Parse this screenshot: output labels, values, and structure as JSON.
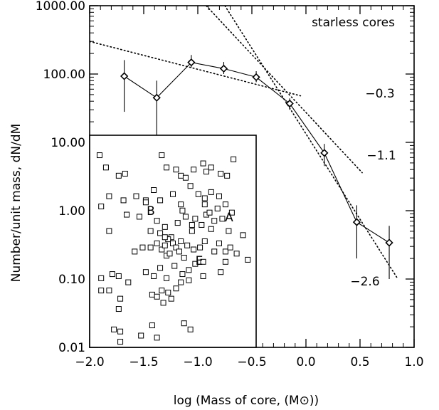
{
  "chart_data": [
    {
      "type": "line",
      "title": "",
      "annotation": "starless cores",
      "xlabel": "log (Mass of core, (M⊙))",
      "ylabel": "Number/unit mass, dN/dM",
      "xlim": [
        -2.0,
        1.0
      ],
      "ylim": [
        0.01,
        1000
      ],
      "yscale": "log",
      "xticks": [
        "−2.0",
        "−1.5",
        "−1.0",
        "−0.5",
        "0.0",
        "0.5",
        "1.0"
      ],
      "yticks": [
        "1000.00",
        "100.00",
        "10.00",
        "1.00",
        "0.10",
        "0.01"
      ],
      "series": [
        {
          "marker": "diamond",
          "x": [
            -1.68,
            -1.38,
            -1.06,
            -0.76,
            -0.46,
            -0.15,
            0.17,
            0.47,
            0.77
          ],
          "y": [
            93,
            45,
            148,
            120,
            90,
            37,
            7,
            0.68,
            0.34
          ],
          "err_low": [
            28,
            10,
            125,
            100,
            76,
            30,
            4.5,
            0.2,
            0.1
          ],
          "err_high": [
            160,
            80,
            190,
            150,
            110,
            44,
            9.5,
            1.2,
            0.6
          ]
        }
      ],
      "fits": [
        {
          "slope_label": "−0.3",
          "x": [
            -2.0,
            -0.05
          ],
          "y": [
            300,
            48
          ]
        },
        {
          "slope_label": "−1.1",
          "x": [
            -1.1,
            0.52
          ],
          "y": [
            2000,
            3.6
          ]
        },
        {
          "slope_label": "−2.6",
          "x": [
            -0.75,
            0.85
          ],
          "y": [
            1000,
            0.1
          ]
        }
      ],
      "slope_labels": [
        "−0.3",
        "−1.1",
        "−2.6"
      ]
    },
    {
      "type": "scatter",
      "marker": "open-square",
      "labels": [
        "A",
        "B",
        "E"
      ],
      "points": [
        [
          0.04,
          0.92
        ],
        [
          0.08,
          0.86
        ],
        [
          0.16,
          0.82
        ],
        [
          0.2,
          0.83
        ],
        [
          0.43,
          0.92
        ],
        [
          0.46,
          0.86
        ],
        [
          0.52,
          0.85
        ],
        [
          0.55,
          0.82
        ],
        [
          0.58,
          0.81
        ],
        [
          0.63,
          0.85
        ],
        [
          0.69,
          0.88
        ],
        [
          0.71,
          0.84
        ],
        [
          0.74,
          0.86
        ],
        [
          0.8,
          0.83
        ],
        [
          0.84,
          0.82
        ],
        [
          0.88,
          0.9
        ],
        [
          0.05,
          0.67
        ],
        [
          0.1,
          0.72
        ],
        [
          0.19,
          0.7
        ],
        [
          0.27,
          0.72
        ],
        [
          0.33,
          0.7
        ],
        [
          0.38,
          0.75
        ],
        [
          0.42,
          0.7
        ],
        [
          0.5,
          0.73
        ],
        [
          0.55,
          0.68
        ],
        [
          0.61,
          0.77
        ],
        [
          0.66,
          0.73
        ],
        [
          0.7,
          0.71
        ],
        [
          0.74,
          0.74
        ],
        [
          0.79,
          0.72
        ],
        [
          0.83,
          0.68
        ],
        [
          0.1,
          0.55
        ],
        [
          0.21,
          0.63
        ],
        [
          0.29,
          0.62
        ],
        [
          0.36,
          0.55
        ],
        [
          0.4,
          0.6
        ],
        [
          0.45,
          0.57
        ],
        [
          0.49,
          0.52
        ],
        [
          0.53,
          0.59
        ],
        [
          0.58,
          0.62
        ],
        [
          0.62,
          0.55
        ],
        [
          0.64,
          0.61
        ],
        [
          0.68,
          0.58
        ],
        [
          0.71,
          0.63
        ],
        [
          0.73,
          0.64
        ],
        [
          0.74,
          0.56
        ],
        [
          0.76,
          0.6
        ],
        [
          0.78,
          0.66
        ],
        [
          0.81,
          0.61
        ],
        [
          0.85,
          0.55
        ],
        [
          0.87,
          0.64
        ],
        [
          0.33,
          0.69
        ],
        [
          0.56,
          0.65
        ],
        [
          0.62,
          0.58
        ],
        [
          0.7,
          0.68
        ],
        [
          0.4,
          0.49
        ],
        [
          0.42,
          0.54
        ],
        [
          0.43,
          0.46
        ],
        [
          0.45,
          0.48
        ],
        [
          0.46,
          0.43
        ],
        [
          0.47,
          0.51
        ],
        [
          0.48,
          0.44
        ],
        [
          0.5,
          0.49
        ],
        [
          0.52,
          0.47
        ],
        [
          0.54,
          0.45
        ],
        [
          0.57,
          0.42
        ],
        [
          0.59,
          0.48
        ],
        [
          0.63,
          0.46
        ],
        [
          0.67,
          0.47
        ],
        [
          0.7,
          0.5
        ],
        [
          0.76,
          0.45
        ],
        [
          0.79,
          0.49
        ],
        [
          0.83,
          0.45
        ],
        [
          0.86,
          0.47
        ],
        [
          0.9,
          0.44
        ],
        [
          0.94,
          0.53
        ],
        [
          0.97,
          0.41
        ],
        [
          0.26,
          0.45
        ],
        [
          0.31,
          0.47
        ],
        [
          0.36,
          0.47
        ],
        [
          0.45,
          0.52
        ],
        [
          0.55,
          0.5
        ],
        [
          0.05,
          0.32
        ],
        [
          0.12,
          0.34
        ],
        [
          0.16,
          0.33
        ],
        [
          0.22,
          0.3
        ],
        [
          0.33,
          0.35
        ],
        [
          0.38,
          0.33
        ],
        [
          0.42,
          0.37
        ],
        [
          0.46,
          0.32
        ],
        [
          0.51,
          0.38
        ],
        [
          0.56,
          0.34
        ],
        [
          0.6,
          0.36
        ],
        [
          0.69,
          0.33
        ],
        [
          0.8,
          0.35
        ],
        [
          0.83,
          0.4
        ],
        [
          0.64,
          0.39
        ],
        [
          0.69,
          0.4
        ],
        [
          0.05,
          0.26
        ],
        [
          0.1,
          0.26
        ],
        [
          0.17,
          0.22
        ],
        [
          0.37,
          0.24
        ],
        [
          0.43,
          0.26
        ],
        [
          0.44,
          0.2
        ],
        [
          0.47,
          0.25
        ],
        [
          0.52,
          0.27
        ],
        [
          0.55,
          0.3
        ],
        [
          0.6,
          0.31
        ],
        [
          0.16,
          0.17
        ],
        [
          0.4,
          0.23
        ],
        [
          0.49,
          0.22
        ],
        [
          0.57,
          0.1
        ],
        [
          0.13,
          0.07
        ],
        [
          0.17,
          0.06
        ],
        [
          0.37,
          0.09
        ],
        [
          0.3,
          0.04
        ],
        [
          0.4,
          0.03
        ],
        [
          0.61,
          0.07
        ],
        [
          0.17,
          0.01
        ]
      ]
    }
  ]
}
